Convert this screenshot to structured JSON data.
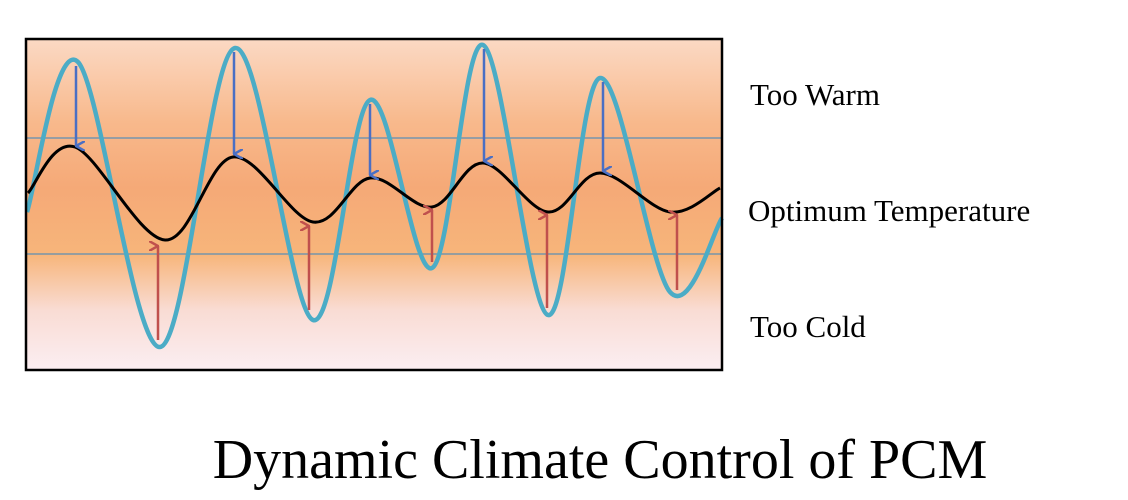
{
  "labels": {
    "warm": "Too Warm",
    "optimum": "Optimum Temperature",
    "cold": "Too Cold"
  },
  "title": "Dynamic Climate Control of PCM"
}
